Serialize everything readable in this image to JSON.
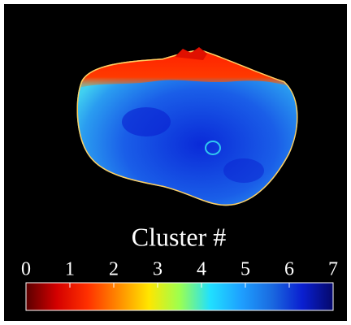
{
  "colorbar": {
    "label": "Cluster #",
    "lim": [
      0,
      7
    ],
    "ticks": [
      0,
      1,
      2,
      3,
      4,
      5,
      6,
      7
    ],
    "colors": [
      "#5a0000",
      "#d40000",
      "#ff3000",
      "#ff8a00",
      "#ffe600",
      "#9cff50",
      "#20e0ff",
      "#1ea0ff",
      "#1a6ae0",
      "#0a1fd0",
      "#05086a"
    ]
  }
}
